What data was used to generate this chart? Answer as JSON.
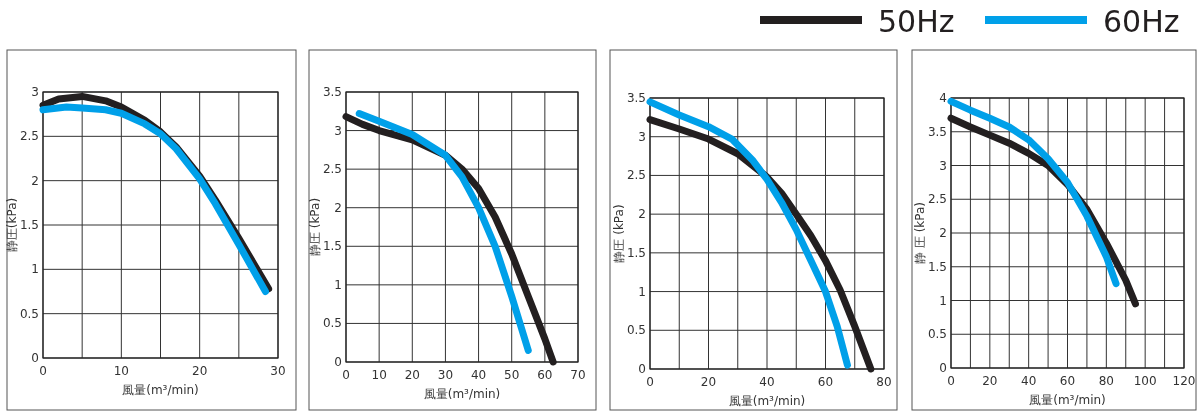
{
  "chart_data": [
    {
      "type": "line",
      "xlabel": "風量(m³/min)",
      "ylabel": "静圧(kPa)",
      "legend": "top right",
      "grid": true,
      "xlim": [
        0,
        30
      ],
      "ylim": [
        0,
        3
      ],
      "xticks": [
        0,
        {
          "value": 5,
          "label": null
        },
        10,
        {
          "value": 15,
          "label": null
        },
        20,
        {
          "value": 25,
          "label": null
        },
        30
      ],
      "yticks": [
        0,
        0.5,
        1,
        1.5,
        2,
        2.5,
        3
      ],
      "series": [
        {
          "name": "50Hz",
          "color": "#231f20",
          "x": [
            0,
            2,
            5,
            8,
            10,
            13,
            15,
            17,
            20,
            22,
            25,
            28.8
          ],
          "values": [
            2.85,
            2.92,
            2.95,
            2.9,
            2.83,
            2.68,
            2.55,
            2.38,
            2.05,
            1.78,
            1.35,
            0.78
          ]
        },
        {
          "name": "60Hz",
          "color": "#00a0e9",
          "x": [
            0,
            3,
            5,
            8,
            10,
            13,
            15,
            17,
            20,
            22,
            25,
            28.4
          ],
          "values": [
            2.8,
            2.83,
            2.82,
            2.8,
            2.76,
            2.64,
            2.53,
            2.36,
            2.02,
            1.74,
            1.28,
            0.75
          ]
        }
      ]
    },
    {
      "type": "line",
      "xlabel": "風量(m³/min)",
      "ylabel": "静圧 (kPa)",
      "grid": true,
      "xlim": [
        0,
        70
      ],
      "ylim": [
        0,
        3.5
      ],
      "xticks": [
        0,
        10,
        20,
        30,
        40,
        50,
        60,
        70
      ],
      "yticks": [
        0,
        0.5,
        1,
        1.5,
        2,
        2.5,
        3,
        3.5
      ],
      "series": [
        {
          "color": "#231f20",
          "x": [
            0,
            5,
            10,
            20,
            30,
            35,
            40,
            45,
            50,
            55,
            60,
            62.5
          ],
          "values": [
            3.18,
            3.08,
            3.0,
            2.88,
            2.68,
            2.5,
            2.25,
            1.88,
            1.4,
            0.85,
            0.3,
            0
          ]
        },
        {
          "color": "#00a0e9",
          "x": [
            4,
            10,
            20,
            30,
            35,
            40,
            45,
            50,
            55
          ],
          "values": [
            3.22,
            3.12,
            2.95,
            2.68,
            2.4,
            2.0,
            1.5,
            0.85,
            0.15
          ]
        }
      ]
    },
    {
      "type": "line",
      "xlabel": "風量(m³/min)",
      "ylabel": "静圧 (kPa)",
      "grid": true,
      "xlim": [
        0,
        80
      ],
      "ylim": [
        0,
        3.5
      ],
      "xticks": [
        0,
        {
          "value": 10,
          "label": null
        },
        20,
        {
          "value": 30,
          "label": null
        },
        40,
        {
          "value": 50,
          "label": null
        },
        60,
        {
          "value": 70,
          "label": null
        },
        80
      ],
      "yticks": [
        0,
        0.5,
        1,
        1.5,
        2,
        2.5,
        3,
        3.5
      ],
      "series": [
        {
          "color": "#231f20",
          "x": [
            0,
            10,
            20,
            30,
            40,
            45,
            50,
            55,
            60,
            65,
            70,
            75.5
          ],
          "values": [
            3.22,
            3.1,
            2.97,
            2.78,
            2.48,
            2.27,
            2.0,
            1.72,
            1.4,
            1.02,
            0.55,
            0
          ]
        },
        {
          "color": "#00a0e9",
          "x": [
            0,
            10,
            20,
            28,
            35,
            40,
            45,
            50,
            55,
            60,
            64,
            67.5
          ],
          "values": [
            3.45,
            3.28,
            3.13,
            2.97,
            2.7,
            2.45,
            2.15,
            1.8,
            1.4,
            1.0,
            0.55,
            0.05
          ]
        }
      ]
    },
    {
      "type": "line",
      "xlabel": "風量(m³/min)",
      "ylabel": "静 圧 (kPa)",
      "grid": true,
      "xlim": [
        0,
        120
      ],
      "ylim": [
        0,
        4
      ],
      "xticks": [
        0,
        {
          "value": 10,
          "label": null
        },
        20,
        {
          "value": 30,
          "label": null
        },
        40,
        {
          "value": 50,
          "label": null
        },
        60,
        {
          "value": 70,
          "label": null
        },
        80,
        {
          "value": 90,
          "label": null
        },
        100,
        {
          "value": 110,
          "label": null
        },
        120
      ],
      "yticks": [
        0,
        0.5,
        1,
        1.5,
        2,
        2.5,
        3,
        3.5,
        4
      ],
      "series": [
        {
          "color": "#231f20",
          "x": [
            0,
            10,
            20,
            30,
            40,
            50,
            60,
            70,
            80,
            90,
            95
          ],
          "values": [
            3.7,
            3.57,
            3.45,
            3.33,
            3.18,
            3.0,
            2.72,
            2.35,
            1.85,
            1.3,
            0.95
          ]
        },
        {
          "color": "#00a0e9",
          "x": [
            0,
            10,
            20,
            30,
            40,
            50,
            60,
            70,
            80,
            85
          ],
          "values": [
            3.95,
            3.82,
            3.7,
            3.57,
            3.38,
            3.1,
            2.75,
            2.25,
            1.65,
            1.25
          ]
        }
      ]
    }
  ]
}
